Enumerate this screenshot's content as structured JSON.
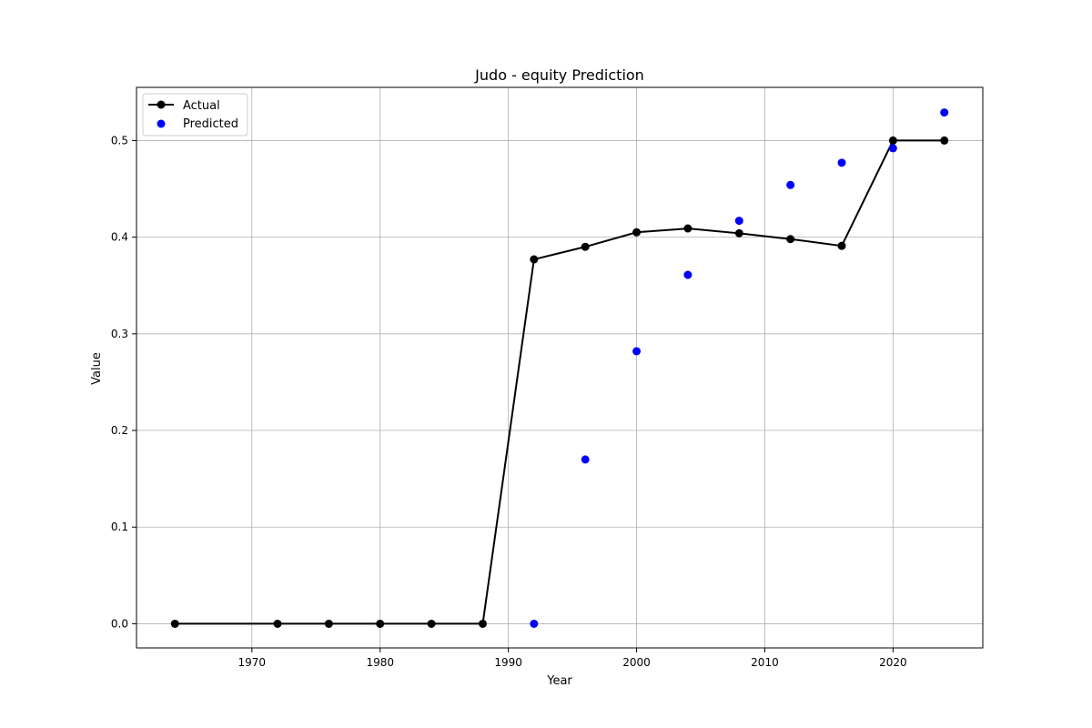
{
  "chart_data": {
    "type": "line",
    "title": "Judo - equity Prediction",
    "xlabel": "Year",
    "ylabel": "Value",
    "xlim": [
      1961,
      2027
    ],
    "ylim": [
      -0.025,
      0.555
    ],
    "xticks": [
      1970,
      1980,
      1990,
      2000,
      2010,
      2020
    ],
    "yticks": [
      0.0,
      0.1,
      0.2,
      0.3,
      0.4,
      0.5
    ],
    "ytick_labels": [
      "0.0",
      "0.1",
      "0.2",
      "0.3",
      "0.4",
      "0.5"
    ],
    "grid": true,
    "legend_position": "top-left",
    "series": [
      {
        "name": "Actual",
        "style": "line-marker",
        "color": "#000000",
        "points": [
          {
            "x": 1964,
            "y": 0.0
          },
          {
            "x": 1972,
            "y": 0.0
          },
          {
            "x": 1976,
            "y": 0.0
          },
          {
            "x": 1980,
            "y": 0.0
          },
          {
            "x": 1984,
            "y": 0.0
          },
          {
            "x": 1988,
            "y": 0.0
          },
          {
            "x": 1992,
            "y": 0.377
          },
          {
            "x": 1996,
            "y": 0.39
          },
          {
            "x": 2000,
            "y": 0.405
          },
          {
            "x": 2004,
            "y": 0.409
          },
          {
            "x": 2008,
            "y": 0.404
          },
          {
            "x": 2012,
            "y": 0.398
          },
          {
            "x": 2016,
            "y": 0.391
          },
          {
            "x": 2020,
            "y": 0.5
          },
          {
            "x": 2024,
            "y": 0.5
          }
        ]
      },
      {
        "name": "Predicted",
        "style": "scatter",
        "color": "#0000ff",
        "points": [
          {
            "x": 1992,
            "y": 0.0
          },
          {
            "x": 1996,
            "y": 0.17
          },
          {
            "x": 2000,
            "y": 0.282
          },
          {
            "x": 2004,
            "y": 0.361
          },
          {
            "x": 2008,
            "y": 0.417
          },
          {
            "x": 2012,
            "y": 0.454
          },
          {
            "x": 2016,
            "y": 0.477
          },
          {
            "x": 2020,
            "y": 0.492
          },
          {
            "x": 2024,
            "y": 0.529
          }
        ]
      }
    ]
  }
}
